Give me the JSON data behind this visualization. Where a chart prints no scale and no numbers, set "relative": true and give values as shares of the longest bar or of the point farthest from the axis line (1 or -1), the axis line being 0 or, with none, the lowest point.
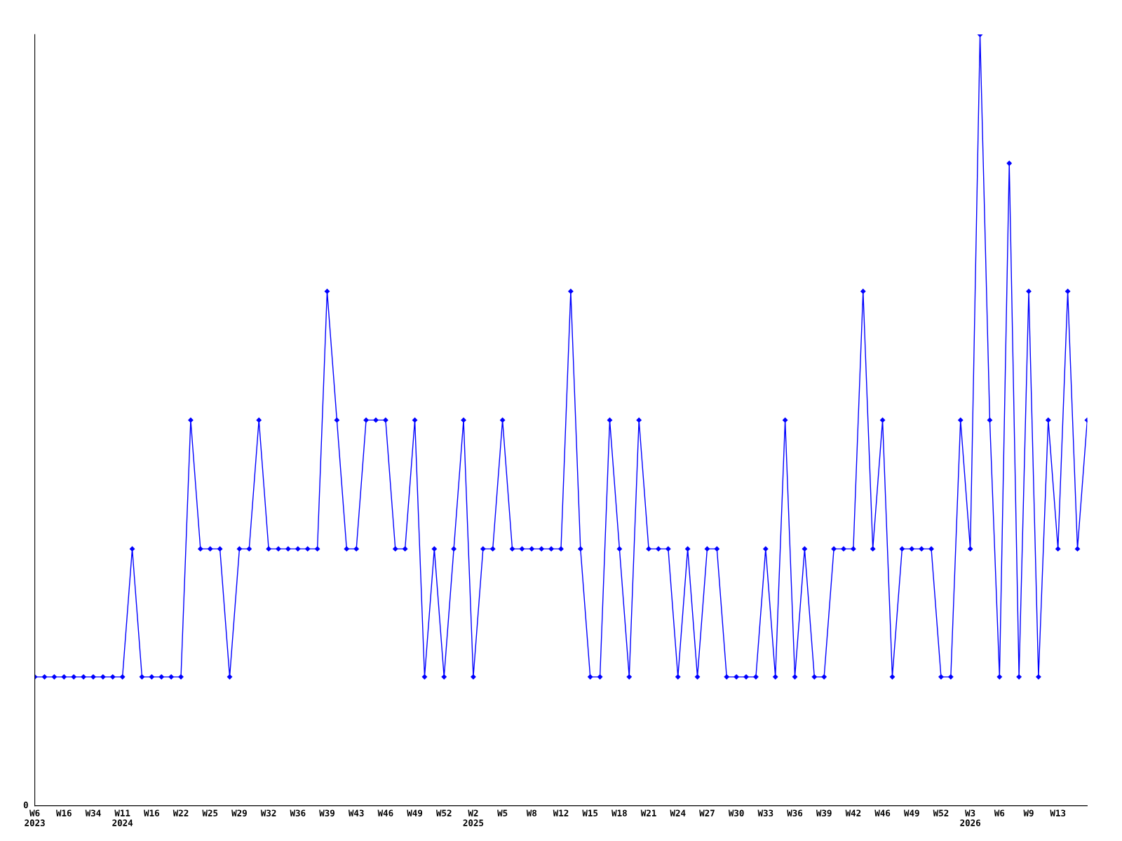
{
  "chart_data": {
    "type": "line",
    "relative": true,
    "marker": "diamond",
    "grid": false,
    "legend": false,
    "categories": [
      "W6\n2023",
      null,
      null,
      "W16",
      null,
      null,
      "W34",
      null,
      null,
      "W11\n2024",
      null,
      null,
      "W16",
      null,
      null,
      "W22",
      null,
      null,
      "W25",
      null,
      null,
      "W29",
      null,
      null,
      "W32",
      null,
      null,
      "W36",
      null,
      null,
      "W39",
      null,
      null,
      "W43",
      null,
      null,
      "W46",
      null,
      null,
      "W49",
      null,
      null,
      "W52",
      null,
      null,
      "W2\n2025",
      null,
      null,
      "W5",
      null,
      null,
      "W8",
      null,
      null,
      "W12",
      null,
      null,
      "W15",
      null,
      null,
      "W18",
      null,
      null,
      "W21",
      null,
      null,
      "W24",
      null,
      null,
      "W27",
      null,
      null,
      "W30",
      null,
      null,
      "W33",
      null,
      null,
      "W36",
      null,
      null,
      "W39",
      null,
      null,
      "W42",
      null,
      null,
      "W46",
      null,
      null,
      "W49",
      null,
      null,
      "W52",
      null,
      null,
      "W3\n2026",
      null,
      null,
      "W6",
      null,
      null,
      "W9",
      null,
      null,
      "W13",
      null,
      null,
      null
    ],
    "series": [
      {
        "color": "#0000ff",
        "values": [
          0.167,
          0.167,
          0.167,
          0.167,
          0.167,
          0.167,
          0.167,
          0.167,
          0.167,
          0.167,
          0.333,
          0.167,
          0.167,
          0.167,
          0.167,
          0.167,
          0.5,
          0.333,
          0.333,
          0.333,
          0.167,
          0.333,
          0.333,
          0.5,
          0.333,
          0.333,
          0.333,
          0.333,
          0.333,
          0.333,
          0.667,
          0.5,
          0.333,
          0.333,
          0.5,
          0.5,
          0.5,
          0.333,
          0.333,
          0.5,
          0.167,
          0.333,
          0.167,
          0.333,
          0.5,
          0.167,
          0.333,
          0.333,
          0.5,
          0.333,
          0.333,
          0.333,
          0.333,
          0.333,
          0.333,
          0.667,
          0.333,
          0.167,
          0.167,
          0.5,
          0.333,
          0.167,
          0.5,
          0.333,
          0.333,
          0.333,
          0.167,
          0.333,
          0.167,
          0.333,
          0.333,
          0.167,
          0.167,
          0.167,
          0.167,
          0.333,
          0.167,
          0.5,
          0.167,
          0.333,
          0.167,
          0.167,
          0.333,
          0.333,
          0.333,
          0.667,
          0.333,
          0.5,
          0.167,
          0.333,
          0.333,
          0.333,
          0.333,
          0.167,
          0.167,
          0.5,
          0.333,
          1,
          0.5,
          0.167,
          0.833,
          0.167,
          0.667,
          0.167,
          0.5,
          0.333,
          0.667,
          0.333,
          0.5
        ]
      }
    ],
    "annotations": [
      "0"
    ]
  }
}
